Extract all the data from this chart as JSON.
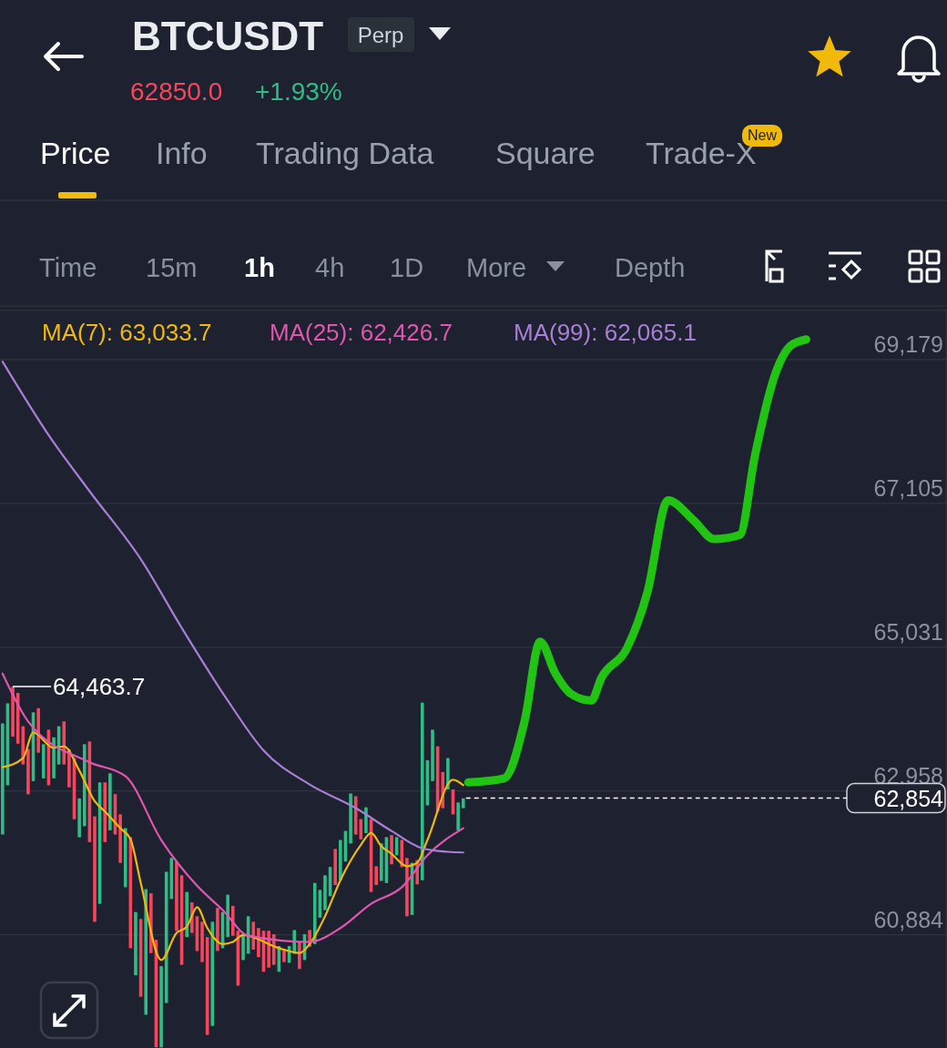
{
  "chart_data": {
    "type": "candlestick",
    "title": "BTCUSDT",
    "annotations": [
      "Perp",
      "62850.0",
      "+1.93%",
      "Price",
      "Info",
      "Trading Data",
      "Square",
      "Trade-X",
      "New",
      "Time",
      "15m",
      "1h",
      "4h",
      "1D",
      "More",
      "Depth",
      "64,463.7"
    ],
    "categories": [
      null,
      null,
      null,
      null,
      null,
      null,
      null,
      null,
      null,
      null,
      null,
      null,
      null,
      null,
      null,
      null,
      null,
      null,
      null,
      null,
      null,
      null,
      null,
      null,
      null,
      null,
      null,
      null,
      null,
      null,
      null,
      null,
      null,
      null,
      null,
      null,
      null,
      null,
      null,
      null,
      null,
      null,
      null,
      null,
      null,
      null,
      null,
      null,
      null,
      null,
      null,
      null,
      null,
      null,
      null,
      null,
      null,
      null,
      null,
      null,
      null,
      null,
      null,
      null,
      null,
      null,
      null,
      null,
      null,
      null,
      null,
      null,
      null,
      null,
      null,
      null,
      null,
      null,
      null,
      null,
      null,
      null,
      null,
      null,
      null,
      null,
      null,
      null,
      null,
      null,
      null,
      null,
      null,
      null,
      null,
      null,
      null,
      null,
      null,
      null,
      null,
      null,
      null,
      null,
      null,
      null,
      null,
      null,
      null,
      null,
      null,
      null,
      null,
      null,
      null,
      null,
      null,
      null,
      null,
      null,
      null,
      null,
      null,
      null,
      null,
      null,
      null,
      null,
      null,
      null,
      null,
      null,
      null,
      null,
      null,
      null,
      null,
      null,
      null,
      null,
      null,
      null,
      null,
      null,
      null,
      null,
      null,
      null,
      null,
      null,
      null,
      null,
      null,
      null,
      null,
      null,
      null,
      null,
      null,
      null,
      null,
      null,
      null,
      null,
      null,
      null,
      null,
      null,
      null,
      null,
      null,
      null,
      null,
      null,
      null,
      null,
      null,
      null,
      null,
      null,
      null,
      null,
      null,
      null,
      null
    ],
    "ohlc": [
      [
        62330,
        63930,
        62330,
        63930
      ],
      [
        63040,
        64220,
        63040,
        64220
      ],
      [
        64460,
        64463.7,
        63740,
        63740
      ],
      [
        64370,
        64370,
        63640,
        63640
      ],
      [
        63890,
        63890,
        63340,
        63340
      ],
      [
        63560,
        63560,
        62910,
        62910
      ],
      [
        63100,
        64090,
        63100,
        64090
      ],
      [
        64150,
        64150,
        63510,
        63510
      ],
      [
        63140,
        63630,
        63140,
        63630
      ],
      [
        63840,
        63840,
        63040,
        63040
      ],
      [
        63140,
        63730,
        63140,
        63730
      ],
      [
        63340,
        63890,
        63340,
        63890
      ],
      [
        63960,
        63960,
        63340,
        63340
      ],
      [
        63560,
        63560,
        63010,
        63010
      ],
      [
        63430,
        63430,
        62550,
        62550
      ],
      [
        62290,
        62850,
        62290,
        62850
      ],
      [
        62450,
        63630,
        62450,
        63630
      ],
      [
        63670,
        63670,
        62220,
        62220
      ],
      [
        62590,
        62590,
        61070,
        61070
      ],
      [
        61330,
        63080,
        61330,
        63080
      ],
      [
        63080,
        63080,
        62220,
        62220
      ],
      [
        62390,
        63210,
        62390,
        63210
      ],
      [
        62910,
        62910,
        62330,
        62330
      ],
      [
        62620,
        62620,
        61920,
        61920
      ],
      [
        61570,
        62420,
        61570,
        62420
      ],
      [
        62290,
        62290,
        60690,
        60690
      ],
      [
        60300,
        61210,
        60300,
        61210
      ],
      [
        61110,
        61110,
        59990,
        59990
      ],
      [
        59730,
        61540,
        59730,
        61540
      ],
      [
        61480,
        61480,
        60620,
        60620
      ],
      [
        60810,
        60810,
        59260,
        59260
      ],
      [
        59260,
        60430,
        59260,
        60430
      ],
      [
        59900,
        61790,
        59900,
        61790
      ],
      [
        61400,
        61990,
        61400,
        61990
      ],
      [
        61940,
        61940,
        60940,
        60940
      ],
      [
        61740,
        61740,
        60450,
        60450
      ],
      [
        60850,
        61500,
        60850,
        61500
      ],
      [
        61350,
        61350,
        60910,
        60910
      ],
      [
        61150,
        61150,
        60650,
        60650
      ],
      [
        61070,
        61070,
        60490,
        60490
      ],
      [
        60850,
        60850,
        59440,
        59440
      ],
      [
        59570,
        61070,
        59570,
        61070
      ],
      [
        61270,
        61270,
        60650,
        60650
      ],
      [
        60690,
        61210,
        60690,
        61210
      ],
      [
        60850,
        61460,
        60850,
        61460
      ],
      [
        61300,
        61300,
        60870,
        60870
      ],
      [
        60940,
        60940,
        60150,
        60150
      ],
      [
        60520,
        60870,
        60520,
        60870
      ],
      [
        60610,
        61150,
        60610,
        61150
      ],
      [
        61070,
        61070,
        60670,
        60670
      ],
      [
        60980,
        60980,
        60560,
        60560
      ],
      [
        60940,
        60940,
        60350,
        60350
      ],
      [
        60940,
        60940,
        60410,
        60410
      ],
      [
        60890,
        60890,
        60450,
        60450
      ],
      [
        60350,
        60720,
        60350,
        60720
      ],
      [
        60670,
        60670,
        60490,
        60490
      ],
      [
        60480,
        60720,
        60480,
        60720
      ],
      [
        60610,
        60950,
        60610,
        60950
      ],
      [
        60780,
        60780,
        60390,
        60390
      ],
      [
        60520,
        60890,
        60520,
        60890
      ],
      [
        60950,
        60950,
        60710,
        60710
      ],
      [
        60750,
        61630,
        60750,
        61630
      ],
      [
        61130,
        61530,
        61130,
        61530
      ],
      [
        61240,
        61740,
        61240,
        61740
      ],
      [
        61440,
        61860,
        61440,
        61860
      ],
      [
        62120,
        62120,
        61600,
        61600
      ],
      [
        61670,
        62250,
        61670,
        62250
      ],
      [
        61940,
        62380,
        61940,
        62380
      ],
      [
        62200,
        62920,
        62200,
        62920
      ],
      [
        62880,
        62880,
        62330,
        62330
      ],
      [
        62550,
        62550,
        62260,
        62260
      ],
      [
        62350,
        62720,
        62350,
        62720
      ],
      [
        62550,
        62550,
        61500,
        61500
      ],
      [
        61870,
        61870,
        61600,
        61600
      ],
      [
        61660,
        62200,
        61660,
        62200
      ],
      [
        61630,
        62290,
        61630,
        62290
      ],
      [
        62320,
        62320,
        61900,
        61900
      ],
      [
        62030,
        62290,
        62030,
        62290
      ],
      [
        62250,
        62250,
        61860,
        61860
      ],
      [
        61990,
        61990,
        61150,
        61150
      ],
      [
        61170,
        61920,
        61170,
        61920
      ],
      [
        61960,
        61960,
        61610,
        61610
      ],
      [
        61670,
        64230,
        61670,
        64230
      ],
      [
        62750,
        63400,
        62750,
        63400
      ],
      [
        63100,
        63840,
        63100,
        63840
      ],
      [
        63600,
        63600,
        62660,
        62660
      ],
      [
        63230,
        63230,
        62710,
        62710
      ],
      [
        62980,
        63430,
        62980,
        63430
      ],
      [
        62980,
        62980,
        62620,
        62620
      ],
      [
        62390,
        62790,
        62390,
        62790
      ],
      [
        62710,
        62850,
        62710,
        62850
      ],
      null,
      null,
      null,
      null,
      null,
      null,
      null,
      null,
      null,
      null,
      null,
      null,
      null,
      null,
      null,
      null,
      null,
      null,
      null,
      null,
      null,
      null,
      null,
      null,
      null,
      null,
      null,
      null,
      null,
      null,
      null,
      null,
      null,
      null,
      null,
      null,
      null,
      null,
      null,
      null,
      null,
      null,
      null,
      null,
      null,
      null,
      null,
      null,
      null,
      null,
      null,
      null,
      null,
      null,
      null,
      null,
      null,
      null,
      null,
      null,
      null,
      null,
      null,
      null,
      null,
      null,
      null,
      null,
      null,
      null,
      null,
      null,
      null,
      null,
      null,
      null,
      null,
      null,
      null,
      null,
      null,
      null,
      null,
      null,
      null,
      null,
      null,
      null,
      null,
      null,
      null,
      null,
      null,
      null
    ],
    "series": [
      {
        "type": "line",
        "name": "MA(7): 63,033.7",
        "color": "#f0b90b",
        "values": [
          63300,
          null,
          null,
          null,
          63430,
          null,
          63800,
          null,
          null,
          null,
          63580,
          null,
          63600,
          null,
          null,
          63250,
          null,
          null,
          62810,
          null,
          62660,
          null,
          null,
          62420,
          null,
          62260,
          null,
          61630,
          null,
          null,
          null,
          60520,
          null,
          null,
          60910,
          null,
          61000,
          null,
          61280,
          null,
          60980,
          null,
          null,
          60750,
          null,
          60780,
          null,
          60880,
          null,
          null,
          null,
          null,
          null,
          null,
          60690,
          null,
          null,
          null,
          60620,
          null,
          60750,
          null,
          null,
          61150,
          null,
          null,
          61670,
          null,
          null,
          null,
          62180,
          null,
          62350,
          null,
          62160,
          null,
          62050,
          null,
          null,
          61870,
          null,
          61920,
          null,
          62250,
          null,
          null,
          null,
          null,
          63120,
          null,
          63040,
          null,
          null,
          null,
          null,
          null,
          null,
          null,
          null,
          null,
          null,
          null,
          null,
          null,
          null,
          null,
          null,
          null,
          null,
          null,
          null,
          null,
          null,
          null,
          null,
          null,
          null,
          null,
          null,
          null,
          null,
          null,
          null,
          null,
          null,
          null,
          null,
          null,
          null,
          null,
          null,
          null,
          null,
          null,
          null,
          null,
          null,
          null,
          null,
          null,
          null,
          null,
          null,
          null,
          null,
          null,
          null,
          null,
          null,
          null,
          null,
          null,
          null,
          null,
          null,
          null,
          null,
          null,
          null,
          null,
          null,
          null,
          null,
          null,
          null,
          null,
          null,
          null,
          null,
          null,
          null,
          null,
          null,
          null,
          null,
          null,
          null,
          null,
          null,
          null,
          null,
          null,
          null,
          null,
          null
        ]
      },
      {
        "type": "line",
        "name": "MA(25): 62,426.7",
        "color": "#e056b0",
        "values": [
          64650,
          null,
          null,
          null,
          null,
          63960,
          null,
          null,
          null,
          null,
          null,
          null,
          null,
          null,
          null,
          null,
          null,
          63370,
          null,
          null,
          null,
          null,
          null,
          null,
          63170,
          null,
          null,
          null,
          null,
          null,
          null,
          62250,
          null,
          null,
          null,
          null,
          null,
          null,
          61590,
          null,
          null,
          null,
          null,
          61240,
          null,
          null,
          null,
          null,
          60870,
          null,
          null,
          null,
          null,
          null,
          null,
          null,
          null,
          null,
          null,
          null,
          60780,
          null,
          null,
          null,
          null,
          null,
          60980,
          null,
          null,
          null,
          null,
          null,
          61330,
          null,
          null,
          null,
          null,
          null,
          61570,
          null,
          null,
          null,
          null,
          62030,
          null,
          null,
          null,
          null,
          null,
          null,
          62420,
          null,
          null,
          null,
          null,
          null,
          null,
          null,
          null,
          null,
          null,
          null,
          null,
          null,
          null,
          null,
          null,
          null,
          null,
          null,
          null,
          null,
          null,
          null,
          null,
          null,
          null,
          null,
          null,
          null,
          null,
          null,
          null,
          null,
          null,
          null,
          null,
          null,
          null,
          null,
          null,
          null,
          null,
          null,
          null,
          null,
          null,
          null,
          null,
          null,
          null,
          null,
          null,
          null,
          null,
          null,
          null,
          null,
          null,
          null,
          null,
          null,
          null,
          null,
          null,
          null,
          null,
          null,
          null,
          null,
          null,
          null,
          null,
          null,
          null,
          null,
          null,
          null,
          null,
          null,
          null,
          null,
          null,
          null,
          null,
          null,
          null,
          null,
          null,
          null,
          null,
          null,
          null,
          null,
          null
        ]
      },
      {
        "type": "line",
        "name": "MA(99): 62,065.1",
        "color": "#a97fd6",
        "values": [
          69150,
          null,
          null,
          null,
          null,
          null,
          null,
          null,
          null,
          68090,
          null,
          null,
          null,
          null,
          null,
          null,
          null,
          67280,
          null,
          null,
          null,
          null,
          null,
          null,
          null,
          null,
          null,
          66300,
          null,
          null,
          null,
          null,
          null,
          null,
          null,
          65310,
          null,
          null,
          null,
          null,
          null,
          null,
          null,
          null,
          64260,
          null,
          null,
          null,
          null,
          null,
          null,
          63540,
          null,
          null,
          null,
          null,
          null,
          null,
          null,
          null,
          63050,
          null,
          null,
          null,
          null,
          null,
          null,
          null,
          null,
          62710,
          null,
          null,
          null,
          null,
          null,
          null,
          62380,
          null,
          null,
          null,
          null,
          null,
          62130,
          null,
          null,
          null,
          null,
          62080,
          null,
          null,
          62070,
          null,
          null,
          null,
          null,
          null,
          null,
          null,
          null,
          null,
          null,
          null,
          null,
          null,
          null,
          null,
          null,
          null,
          null,
          null,
          null,
          null,
          null,
          null,
          null,
          null,
          null,
          null,
          null,
          null,
          null,
          null,
          null,
          null,
          null,
          null,
          null,
          null,
          null,
          null,
          null,
          null,
          null,
          null,
          null,
          null,
          null,
          null,
          null,
          null,
          null,
          null,
          null,
          null,
          null,
          null,
          null,
          null,
          null,
          null,
          null,
          null,
          null,
          null,
          null,
          null,
          null,
          null,
          null,
          null,
          null,
          null,
          null,
          null,
          null,
          null,
          null,
          null,
          null,
          null,
          null,
          null,
          null,
          null,
          null,
          null,
          null,
          null,
          null,
          null,
          null,
          null,
          null,
          null,
          null
        ]
      },
      {
        "type": "line",
        "color": "#22c414",
        "values": [
          null,
          null,
          null,
          null,
          null,
          null,
          null,
          null,
          null,
          null,
          null,
          null,
          null,
          null,
          null,
          null,
          null,
          null,
          null,
          null,
          null,
          null,
          null,
          null,
          null,
          null,
          null,
          null,
          null,
          null,
          null,
          null,
          null,
          null,
          null,
          null,
          null,
          null,
          null,
          null,
          null,
          null,
          null,
          null,
          null,
          null,
          null,
          null,
          null,
          null,
          null,
          null,
          null,
          null,
          null,
          null,
          null,
          null,
          null,
          null,
          null,
          null,
          null,
          null,
          null,
          null,
          null,
          null,
          null,
          null,
          null,
          null,
          null,
          null,
          null,
          null,
          null,
          null,
          null,
          null,
          null,
          null,
          null,
          null,
          null,
          null,
          null,
          null,
          null,
          null,
          null,
          63080,
          null,
          null,
          null,
          null,
          null,
          null,
          63140,
          null,
          null,
          null,
          63970,
          null,
          null,
          65110,
          null,
          null,
          64650,
          null,
          null,
          64360,
          null,
          null,
          null,
          64260,
          null,
          64590,
          null,
          null,
          null,
          null,
          65020,
          null,
          null,
          null,
          65830,
          null,
          null,
          null,
          67150,
          null,
          null,
          null,
          null,
          66860,
          null,
          null,
          null,
          66590,
          null,
          null,
          null,
          null,
          66650,
          null,
          null,
          67800,
          null,
          null,
          null,
          68980,
          null,
          null,
          69380,
          null,
          null,
          69470,
          null,
          null,
          null,
          null,
          null,
          null,
          null,
          null,
          null,
          null,
          null,
          null,
          null,
          null,
          null,
          null,
          null,
          null,
          null,
          null,
          null,
          null,
          null,
          null,
          null,
          null,
          null
        ]
      }
    ],
    "ref_lines": [
      {
        "axis": "y",
        "value": 62854,
        "label": "62,854",
        "color": "#ffffff",
        "line_style": "dashed"
      }
    ],
    "ylim": [
      59250,
      69900
    ],
    "yticks": [
      {
        "value": 60884,
        "label": "60,884"
      },
      {
        "value": 62958,
        "label": "62,958"
      },
      {
        "value": 65031,
        "label": "65,031"
      },
      {
        "value": 67105,
        "label": "67,105"
      },
      {
        "value": 69179,
        "label": "69,179"
      }
    ],
    "grid": "y",
    "legend": "top left",
    "tick_labels": "y"
  }
}
